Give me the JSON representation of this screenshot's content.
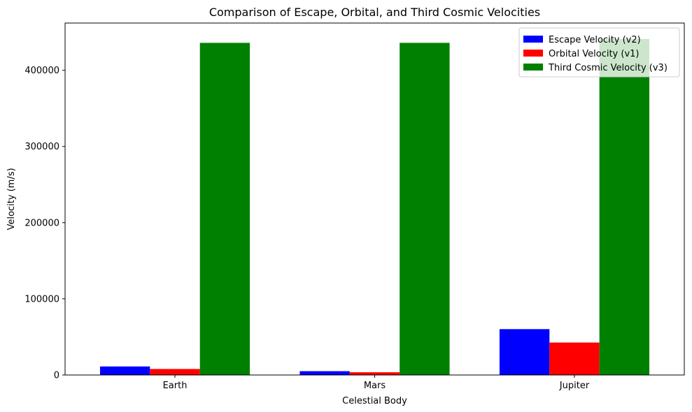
{
  "chart_data": {
    "type": "bar",
    "title": "Comparison of Escape, Orbital, and Third Cosmic Velocities",
    "xlabel": "Celestial Body",
    "ylabel": "Velocity (m/s)",
    "categories": [
      "Earth",
      "Mars",
      "Jupiter"
    ],
    "ylim": [
      0,
      462000
    ],
    "yticks": [
      0,
      100000,
      200000,
      300000,
      400000
    ],
    "grid": false,
    "legend_position": "top-right",
    "series": [
      {
        "name": "Escape Velocity (v2)",
        "color": "#0000ff",
        "values": [
          11200,
          5000,
          60200
        ]
      },
      {
        "name": "Orbital Velocity (v1)",
        "color": "#ff0000",
        "values": [
          7900,
          3600,
          42600
        ]
      },
      {
        "name": "Third Cosmic Velocity (v3)",
        "color": "#008000",
        "values": [
          436000,
          436000,
          441000
        ]
      }
    ]
  }
}
